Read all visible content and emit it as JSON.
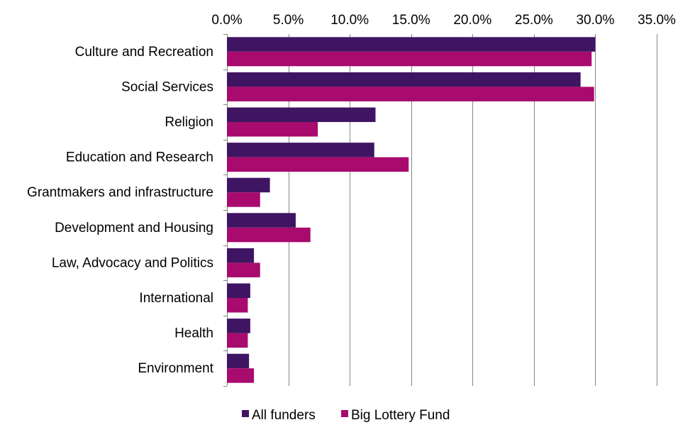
{
  "chart_data": {
    "type": "bar",
    "orientation": "horizontal",
    "title": "",
    "xlabel": "",
    "ylabel": "",
    "xlim": [
      0,
      35
    ],
    "x_ticks": [
      "0.0%",
      "5.0%",
      "10.0%",
      "15.0%",
      "20.0%",
      "25.0%",
      "30.0%",
      "35.0%"
    ],
    "x_tick_values": [
      0,
      5,
      10,
      15,
      20,
      25,
      30,
      35
    ],
    "x_axis_position": "top",
    "grid": "vertical",
    "legend_position": "bottom",
    "categories": [
      "Culture and Recreation",
      "Social Services",
      "Religion",
      "Education and Research",
      "Grantmakers and infrastructure",
      "Development and Housing",
      "Law, Advocacy and Politics",
      "International",
      "Health",
      "Environment"
    ],
    "series": [
      {
        "name": "All funders",
        "color": "#3f1563",
        "values": [
          30.0,
          28.8,
          12.1,
          12.0,
          3.5,
          5.6,
          2.2,
          1.9,
          1.9,
          1.8
        ]
      },
      {
        "name": "Big Lottery Fund",
        "color": "#a80a6e",
        "values": [
          29.7,
          29.9,
          7.4,
          14.8,
          2.7,
          6.8,
          2.7,
          1.7,
          1.7,
          2.2
        ]
      }
    ]
  }
}
